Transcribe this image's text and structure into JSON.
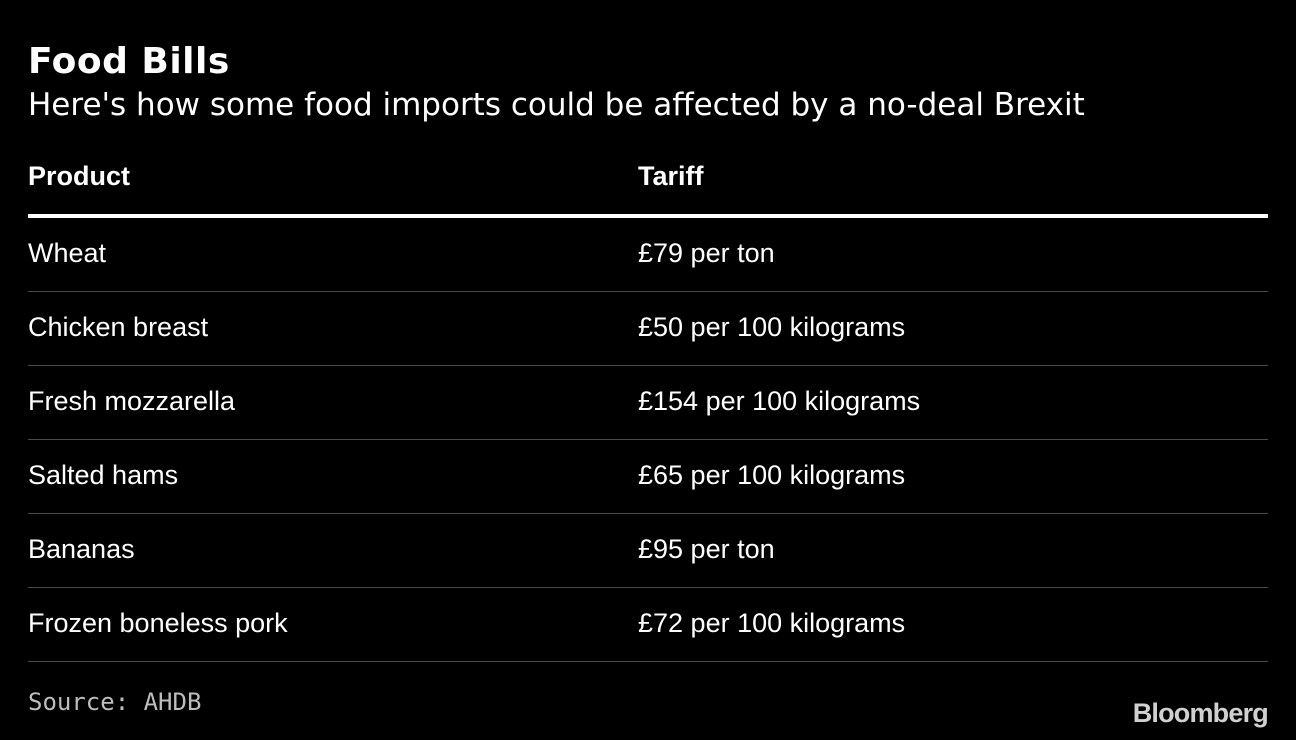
{
  "chart_data": {
    "type": "table",
    "title": "Food Bills",
    "subtitle": "Here's how some food imports could be affected by a no-deal Brexit",
    "columns": [
      "Product",
      "Tariff"
    ],
    "rows": [
      [
        "Wheat",
        "£79 per ton"
      ],
      [
        "Chicken breast",
        "£50 per 100 kilograms"
      ],
      [
        "Fresh mozzarella",
        "£154 per 100 kilograms"
      ],
      [
        "Salted hams",
        "£65 per 100 kilograms"
      ],
      [
        "Bananas",
        "£95 per ton"
      ],
      [
        "Frozen boneless pork",
        "£72 per 100 kilograms"
      ]
    ]
  },
  "footer": {
    "source": "Source: AHDB",
    "brand": "Bloomberg"
  },
  "colors": {
    "background": "#000000",
    "text": "#ffffff",
    "rule": "#ffffff",
    "divider": "#4a4a4a"
  }
}
